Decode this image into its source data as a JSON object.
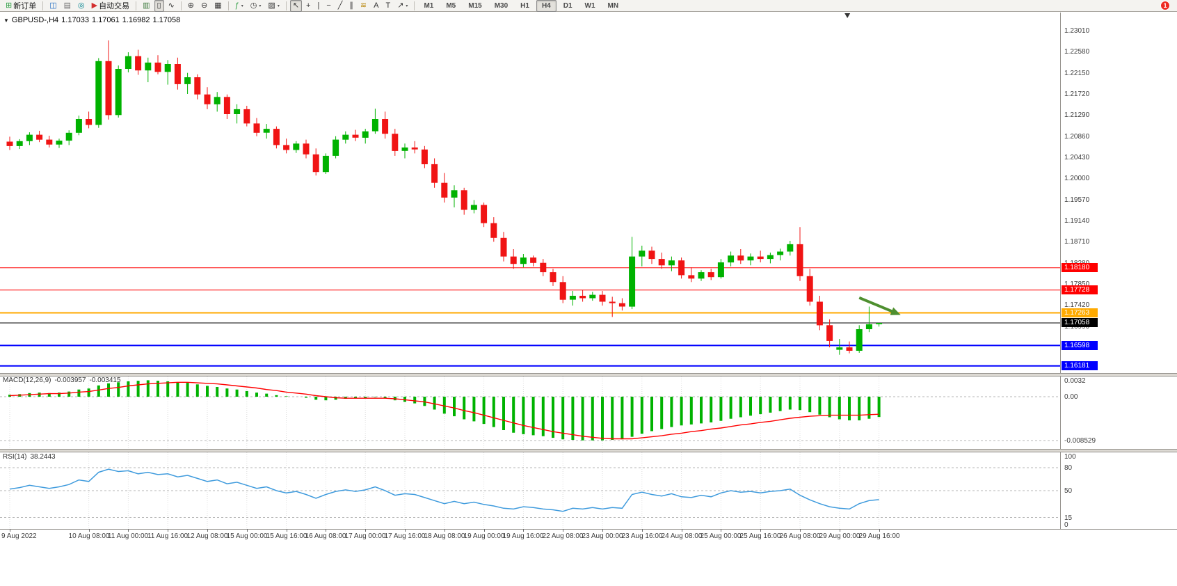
{
  "app": {
    "badge_count": "1",
    "toolbar": {
      "groups": [
        {
          "items": [
            {
              "name": "new-order-button",
              "glyph": "⊞",
              "color": "#2f9e44",
              "label": "新订单"
            }
          ]
        },
        {
          "items": [
            {
              "name": "new-chart-button",
              "glyph": "◫",
              "color": "#1565c0"
            },
            {
              "name": "profiles-button",
              "glyph": "▤",
              "color": "#6d6d6d"
            },
            {
              "name": "navigator-button",
              "glyph": "◎",
              "color": "#00838f"
            },
            {
              "name": "autotrading-button",
              "glyph": "▶",
              "color": "#d32f2f",
              "label": "自动交易"
            }
          ]
        },
        {
          "items": [
            {
              "name": "bar-chart-button",
              "glyph": "▥",
              "color": "#3d7a3d"
            },
            {
              "name": "candlestick-chart-button",
              "glyph": "▯",
              "color": "#333333",
              "active": true
            },
            {
              "name": "line-chart-button",
              "glyph": "∿",
              "color": "#333333"
            }
          ]
        },
        {
          "items": [
            {
              "name": "zoom-in-button",
              "glyph": "⊕",
              "color": "#333333"
            },
            {
              "name": "zoom-out-button",
              "glyph": "⊖",
              "color": "#333333"
            },
            {
              "name": "tile-windows-button",
              "glyph": "▦",
              "color": "#333333"
            }
          ]
        },
        {
          "items": [
            {
              "name": "indicators-button",
              "glyph": "ƒ",
              "color": "#2f9e44",
              "caret": true
            },
            {
              "name": "periods-button",
              "glyph": "◷",
              "color": "#333333",
              "caret": true
            },
            {
              "name": "templates-button",
              "glyph": "▨",
              "color": "#333333",
              "caret": true
            }
          ]
        },
        {
          "items": [
            {
              "name": "cursor-button",
              "glyph": "↖",
              "color": "#333333",
              "active": true
            },
            {
              "name": "crosshair-button",
              "glyph": "+",
              "color": "#333333"
            },
            {
              "name": "vertical-line-button",
              "glyph": "|",
              "color": "#333333"
            },
            {
              "name": "horizontal-line-button",
              "glyph": "−",
              "color": "#333333"
            },
            {
              "name": "trendline-button",
              "glyph": "╱",
              "color": "#333333"
            },
            {
              "name": "channel-button",
              "glyph": "∥",
              "color": "#333333"
            },
            {
              "name": "fibonacci-button",
              "glyph": "≋",
              "color": "#b8860b"
            },
            {
              "name": "text-button",
              "glyph": "A",
              "color": "#333333"
            },
            {
              "name": "text-label-button",
              "glyph": "T",
              "color": "#333333"
            },
            {
              "name": "arrows-button",
              "glyph": "↗",
              "color": "#333333",
              "caret": true
            }
          ]
        },
        {
          "items": [
            {
              "name": "timeframe-m1",
              "label": "M1",
              "tf": true
            },
            {
              "name": "timeframe-m5",
              "label": "M5",
              "tf": true
            },
            {
              "name": "timeframe-m15",
              "label": "M15",
              "tf": true
            },
            {
              "name": "timeframe-m30",
              "label": "M30",
              "tf": true
            },
            {
              "name": "timeframe-h1",
              "label": "H1",
              "tf": true
            },
            {
              "name": "timeframe-h4",
              "label": "H4",
              "tf": true,
              "active": true
            },
            {
              "name": "timeframe-d1",
              "label": "D1",
              "tf": true
            },
            {
              "name": "timeframe-w1",
              "label": "W1",
              "tf": true
            },
            {
              "name": "timeframe-mn",
              "label": "MN",
              "tf": true
            }
          ]
        }
      ]
    }
  },
  "icons": {
    "caret": "▼",
    "button_caret": "▾"
  },
  "colors": {
    "bull": "#00b200",
    "bear": "#f01414",
    "macd_hist": "#00b200",
    "macd_signal": "#ff0000",
    "rsi_line": "#3f9bdd",
    "grid": "#dcdcdc",
    "level_dash": "#b5b5b5",
    "axis_text": "#3c3c3c",
    "arrow": "#4e8f2f",
    "current_price": "#000000"
  },
  "chart_data": {
    "type": "candlestick",
    "symbol_period": "GBPUSD-,H4",
    "ohlc": {
      "open": "1.17033",
      "high": "1.17061",
      "low": "1.16982",
      "close": "1.17058"
    },
    "price_ticks": [
      "1.23010",
      "1.22580",
      "1.22150",
      "1.21720",
      "1.21290",
      "1.20860",
      "1.20430",
      "1.20000",
      "1.19570",
      "1.19140",
      "1.18710",
      "1.18280",
      "1.17850",
      "1.17420",
      "1.16990",
      "1.16560",
      "1.16130"
    ],
    "hlines": [
      {
        "label": "1.18180",
        "color": "#ff0000",
        "width": 1
      },
      {
        "label": "1.17728",
        "color": "#ff0000",
        "width": 1
      },
      {
        "label": "1.17263",
        "color": "#ffaa00",
        "width": 2
      },
      {
        "label": "1.16598",
        "color": "#0000ff",
        "width": 2
      },
      {
        "label": "1.16181",
        "color": "#0000ff",
        "width": 2
      }
    ],
    "current_price": {
      "label": "1.17058"
    },
    "arrow": {
      "from_index": 86,
      "from_price": 1.1757,
      "to_index": 90.2,
      "to_price": 1.1722
    },
    "shift_marker_index": 84.8,
    "time_labels": [
      {
        "i": 0,
        "t": "9 Aug 2022"
      },
      {
        "i": 8,
        "t": "10 Aug 08:00"
      },
      {
        "i": 12,
        "t": "11 Aug 00:00"
      },
      {
        "i": 16,
        "t": "11 Aug 16:00"
      },
      {
        "i": 20,
        "t": "12 Aug 08:00"
      },
      {
        "i": 24,
        "t": "15 Aug 00:00"
      },
      {
        "i": 28,
        "t": "15 Aug 16:00"
      },
      {
        "i": 32,
        "t": "16 Aug 08:00"
      },
      {
        "i": 36,
        "t": "17 Aug 00:00"
      },
      {
        "i": 40,
        "t": "17 Aug 16:00"
      },
      {
        "i": 44,
        "t": "18 Aug 08:00"
      },
      {
        "i": 48,
        "t": "19 Aug 00:00"
      },
      {
        "i": 52,
        "t": "19 Aug 16:00"
      },
      {
        "i": 56,
        "t": "22 Aug 08:00"
      },
      {
        "i": 60,
        "t": "23 Aug 00:00"
      },
      {
        "i": 64,
        "t": "23 Aug 16:00"
      },
      {
        "i": 68,
        "t": "24 Aug 08:00"
      },
      {
        "i": 72,
        "t": "25 Aug 00:00"
      },
      {
        "i": 76,
        "t": "25 Aug 16:00"
      },
      {
        "i": 80,
        "t": "26 Aug 08:00"
      },
      {
        "i": 84,
        "t": "29 Aug 00:00"
      },
      {
        "i": 88,
        "t": "29 Aug 16:00"
      }
    ],
    "candles": [
      [
        1.2075,
        1.2085,
        1.2058,
        1.2066
      ],
      [
        1.2066,
        1.208,
        1.206,
        1.2076
      ],
      [
        1.2076,
        1.2094,
        1.2068,
        1.2089
      ],
      [
        1.2089,
        1.2097,
        1.2074,
        1.2079
      ],
      [
        1.2079,
        1.2087,
        1.2063,
        1.2069
      ],
      [
        1.2069,
        1.2081,
        1.2062,
        1.2077
      ],
      [
        1.2077,
        1.2098,
        1.2068,
        1.2093
      ],
      [
        1.2093,
        1.2128,
        1.2088,
        1.2121
      ],
      [
        1.2121,
        1.2136,
        1.2102,
        1.2109
      ],
      [
        1.2109,
        1.2245,
        1.2103,
        1.2239
      ],
      [
        1.2239,
        1.2281,
        1.212,
        1.2129
      ],
      [
        1.2129,
        1.223,
        1.2124,
        1.2223
      ],
      [
        1.2223,
        1.2257,
        1.2216,
        1.2249
      ],
      [
        1.2249,
        1.2262,
        1.2211,
        1.222
      ],
      [
        1.222,
        1.2246,
        1.2196,
        1.2236
      ],
      [
        1.2236,
        1.2251,
        1.2212,
        1.2217
      ],
      [
        1.2217,
        1.2241,
        1.2191,
        1.2233
      ],
      [
        1.2233,
        1.2246,
        1.2181,
        1.2192
      ],
      [
        1.2192,
        1.2215,
        1.2172,
        1.2206
      ],
      [
        1.2206,
        1.2212,
        1.2161,
        1.2171
      ],
      [
        1.2171,
        1.2186,
        1.2141,
        1.2151
      ],
      [
        1.2151,
        1.2176,
        1.2136,
        1.2166
      ],
      [
        1.2166,
        1.2171,
        1.2121,
        1.2131
      ],
      [
        1.2131,
        1.2151,
        1.2112,
        1.2141
      ],
      [
        1.2141,
        1.2148,
        1.2106,
        1.2112
      ],
      [
        1.2112,
        1.2123,
        1.2086,
        1.2093
      ],
      [
        1.2093,
        1.2111,
        1.2081,
        1.2101
      ],
      [
        1.2101,
        1.2106,
        1.2061,
        1.2068
      ],
      [
        1.2068,
        1.2081,
        1.2051,
        1.2058
      ],
      [
        1.2058,
        1.2076,
        1.2052,
        1.2071
      ],
      [
        1.2071,
        1.2079,
        1.2041,
        1.2049
      ],
      [
        1.2049,
        1.2061,
        1.2006,
        1.2013
      ],
      [
        1.2013,
        1.2051,
        1.2009,
        1.2046
      ],
      [
        1.2046,
        1.2086,
        1.2041,
        1.2079
      ],
      [
        1.2079,
        1.2096,
        1.2071,
        1.2089
      ],
      [
        1.2089,
        1.2099,
        1.2076,
        1.2083
      ],
      [
        1.2083,
        1.2101,
        1.2071,
        1.2096
      ],
      [
        1.2096,
        1.2142,
        1.2091,
        1.2121
      ],
      [
        1.2121,
        1.2136,
        1.2081,
        1.2091
      ],
      [
        1.2091,
        1.2101,
        1.2046,
        1.2056
      ],
      [
        1.2056,
        1.2071,
        1.2041,
        1.2063
      ],
      [
        1.2063,
        1.2076,
        1.2051,
        1.2059
      ],
      [
        1.2059,
        1.2066,
        1.2021,
        1.2029
      ],
      [
        1.2029,
        1.2041,
        1.1981,
        1.1991
      ],
      [
        1.1991,
        1.2011,
        1.1951,
        1.1961
      ],
      [
        1.1961,
        1.1986,
        1.1941,
        1.1976
      ],
      [
        1.1976,
        1.1981,
        1.1926,
        1.1936
      ],
      [
        1.1936,
        1.1956,
        1.1929,
        1.1946
      ],
      [
        1.1946,
        1.1951,
        1.1901,
        1.1909
      ],
      [
        1.1909,
        1.1921,
        1.1871,
        1.1879
      ],
      [
        1.1879,
        1.1891,
        1.1831,
        1.1841
      ],
      [
        1.1841,
        1.1856,
        1.1816,
        1.1826
      ],
      [
        1.1826,
        1.1846,
        1.1819,
        1.1839
      ],
      [
        1.1839,
        1.1843,
        1.1821,
        1.1828
      ],
      [
        1.1828,
        1.1836,
        1.1801,
        1.1809
      ],
      [
        1.1809,
        1.1816,
        1.1781,
        1.1789
      ],
      [
        1.1789,
        1.1801,
        1.1746,
        1.1753
      ],
      [
        1.1753,
        1.1771,
        1.1741,
        1.1761
      ],
      [
        1.1761,
        1.1773,
        1.1749,
        1.1756
      ],
      [
        1.1756,
        1.1769,
        1.1751,
        1.1763
      ],
      [
        1.1763,
        1.1771,
        1.1741,
        1.1749
      ],
      [
        1.1749,
        1.1759,
        1.1718,
        1.1746
      ],
      [
        1.1746,
        1.1756,
        1.1731,
        1.1739
      ],
      [
        1.1739,
        1.1881,
        1.1734,
        1.1841
      ],
      [
        1.1841,
        1.1863,
        1.1821,
        1.1853
      ],
      [
        1.1853,
        1.1861,
        1.1826,
        1.1836
      ],
      [
        1.1836,
        1.1849,
        1.1816,
        1.1823
      ],
      [
        1.1823,
        1.1841,
        1.1811,
        1.1833
      ],
      [
        1.1833,
        1.1839,
        1.1796,
        1.1803
      ],
      [
        1.1803,
        1.1819,
        1.1789,
        1.1796
      ],
      [
        1.1796,
        1.1813,
        1.1791,
        1.1809
      ],
      [
        1.1809,
        1.1816,
        1.1793,
        1.1799
      ],
      [
        1.1799,
        1.1836,
        1.1796,
        1.1829
      ],
      [
        1.1829,
        1.1851,
        1.1821,
        1.1843
      ],
      [
        1.1843,
        1.1856,
        1.1826,
        1.1833
      ],
      [
        1.1833,
        1.1847,
        1.1823,
        1.1841
      ],
      [
        1.1841,
        1.1853,
        1.1829,
        1.1836
      ],
      [
        1.1836,
        1.1849,
        1.1827,
        1.1844
      ],
      [
        1.1844,
        1.1857,
        1.1833,
        1.1851
      ],
      [
        1.1851,
        1.1873,
        1.1843,
        1.1866
      ],
      [
        1.1866,
        1.1901,
        1.1791,
        1.1801
      ],
      [
        1.1801,
        1.1816,
        1.1741,
        1.1749
      ],
      [
        1.1749,
        1.1761,
        1.1691,
        1.1701
      ],
      [
        1.1701,
        1.1713,
        1.1656,
        1.1669
      ],
      [
        1.1651,
        1.1673,
        1.1641,
        1.1656
      ],
      [
        1.1656,
        1.1668,
        1.1644,
        1.1649
      ],
      [
        1.1649,
        1.1701,
        1.1645,
        1.1693
      ],
      [
        1.1693,
        1.1739,
        1.1687,
        1.1703
      ],
      [
        1.17033,
        1.17061,
        1.16982,
        1.17058
      ]
    ],
    "macd": {
      "name": "MACD(12,26,9)",
      "value_main": "-0.003957",
      "value_signal": "-0.003415",
      "axis_labels": [
        "0.0032",
        "0.00",
        "-0.008529"
      ],
      "levels": [
        0,
        -0.008529
      ],
      "histogram": [
        0.0004,
        0.0005,
        0.0007,
        0.0008,
        0.0007,
        0.0008,
        0.001,
        0.0014,
        0.0016,
        0.0022,
        0.0026,
        0.0028,
        0.003,
        0.0031,
        0.0032,
        0.0031,
        0.003,
        0.0028,
        0.0027,
        0.0024,
        0.0021,
        0.0019,
        0.0016,
        0.0014,
        0.0011,
        0.0008,
        0.0006,
        0.0003,
        0.0001,
        0.0,
        -0.0002,
        -0.0006,
        -0.0007,
        -0.0006,
        -0.0004,
        -0.0003,
        -0.0002,
        -0.0001,
        -0.0003,
        -0.0007,
        -0.001,
        -0.0013,
        -0.0018,
        -0.0025,
        -0.0033,
        -0.0038,
        -0.0044,
        -0.0048,
        -0.0053,
        -0.0059,
        -0.0065,
        -0.007,
        -0.0073,
        -0.0075,
        -0.0077,
        -0.008,
        -0.0083,
        -0.0084,
        -0.0085,
        -0.0085,
        -0.0085,
        -0.0084,
        -0.0083,
        -0.0078,
        -0.0072,
        -0.0067,
        -0.0063,
        -0.0059,
        -0.0056,
        -0.0054,
        -0.0052,
        -0.005,
        -0.0047,
        -0.0043,
        -0.004,
        -0.0037,
        -0.0034,
        -0.0031,
        -0.0028,
        -0.0025,
        -0.0026,
        -0.003,
        -0.0035,
        -0.004,
        -0.0044,
        -0.0046,
        -0.0046,
        -0.0043,
        -0.003957
      ],
      "signal": [
        0.0002,
        0.0003,
        0.0004,
        0.0005,
        0.0006,
        0.0006,
        0.0007,
        0.0009,
        0.001,
        0.0013,
        0.0016,
        0.0018,
        0.0021,
        0.0023,
        0.0025,
        0.0026,
        0.0027,
        0.0028,
        0.0028,
        0.0027,
        0.0026,
        0.0025,
        0.0023,
        0.0021,
        0.0019,
        0.0017,
        0.0014,
        0.0012,
        0.0009,
        0.0007,
        0.0005,
        0.0002,
        0.0,
        -0.0002,
        -0.0003,
        -0.0003,
        -0.0003,
        -0.0003,
        -0.0003,
        -0.0004,
        -0.0006,
        -0.0008,
        -0.001,
        -0.0014,
        -0.0018,
        -0.0022,
        -0.0027,
        -0.0031,
        -0.0036,
        -0.0041,
        -0.0046,
        -0.0051,
        -0.0056,
        -0.006,
        -0.0064,
        -0.0068,
        -0.0071,
        -0.0074,
        -0.0077,
        -0.0079,
        -0.0081,
        -0.0082,
        -0.0082,
        -0.0082,
        -0.008,
        -0.0078,
        -0.0076,
        -0.0073,
        -0.0071,
        -0.0068,
        -0.0066,
        -0.0063,
        -0.0061,
        -0.0058,
        -0.0055,
        -0.0053,
        -0.005,
        -0.0048,
        -0.0045,
        -0.0042,
        -0.004,
        -0.0038,
        -0.0037,
        -0.0036,
        -0.0036,
        -0.0036,
        -0.0036,
        -0.0035,
        -0.003415
      ]
    },
    "rsi": {
      "name": "RSI(14)",
      "value": "38.2443",
      "axis_labels": [
        "100",
        "80",
        "50",
        "15",
        "0"
      ],
      "levels": [
        80,
        50,
        15
      ],
      "values": [
        52,
        54,
        57,
        55,
        53,
        55,
        58,
        64,
        62,
        74,
        78,
        75,
        76,
        72,
        74,
        71,
        72,
        68,
        70,
        66,
        62,
        64,
        59,
        61,
        57,
        53,
        55,
        50,
        47,
        49,
        45,
        40,
        45,
        49,
        51,
        49,
        51,
        55,
        50,
        44,
        46,
        45,
        41,
        37,
        33,
        36,
        33,
        35,
        32,
        30,
        27,
        26,
        29,
        28,
        26,
        25,
        23,
        27,
        26,
        28,
        26,
        28,
        27,
        45,
        48,
        45,
        43,
        46,
        42,
        41,
        44,
        42,
        47,
        50,
        48,
        49,
        47,
        49,
        50,
        52,
        44,
        38,
        33,
        29,
        27,
        26,
        33,
        37,
        38.2443
      ]
    }
  }
}
